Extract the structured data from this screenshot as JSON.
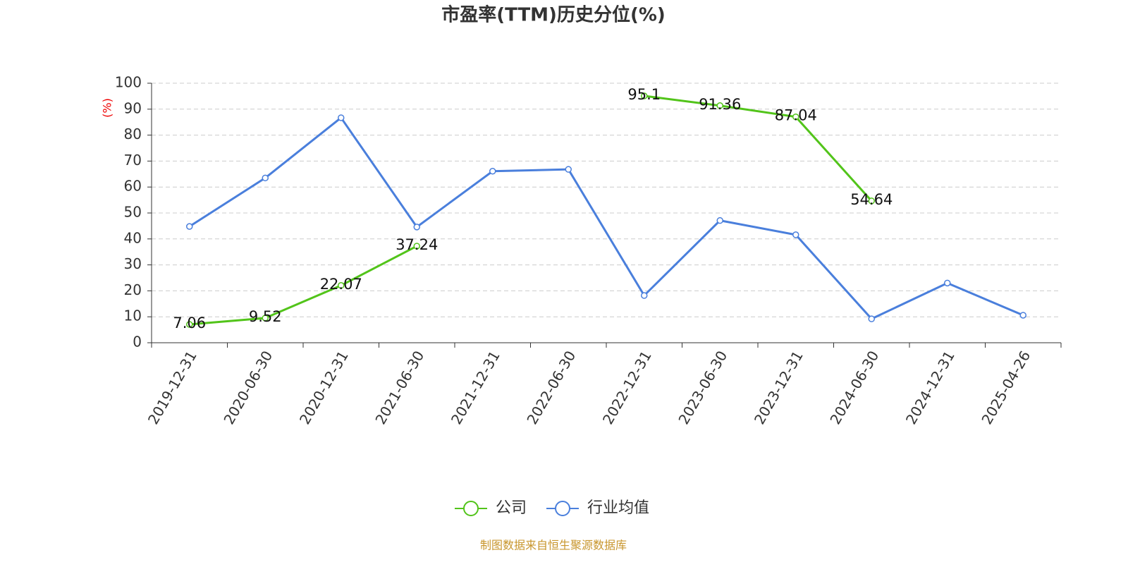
{
  "chart_data": {
    "type": "line",
    "title": "市盈率(TTM)历史分位(%)",
    "y_label": "(%)",
    "source": "制图数据来自恒生聚源数据库",
    "categories": [
      "2019-12-31",
      "2020-06-30",
      "2020-12-31",
      "2021-06-30",
      "2021-12-31",
      "2022-06-30",
      "2022-12-31",
      "2023-06-30",
      "2023-12-31",
      "2024-06-30",
      "2024-12-31",
      "2025-04-26"
    ],
    "series": [
      {
        "name": "公司",
        "color": "#52c41a",
        "show_labels": true,
        "values": [
          7.06,
          9.52,
          22.07,
          37.24,
          null,
          null,
          95.1,
          91.36,
          87.04,
          54.64,
          null,
          null
        ]
      },
      {
        "name": "行业均值",
        "color": "#4a7fdc",
        "show_labels": false,
        "values": [
          44.8,
          63.5,
          86.7,
          44.6,
          66.1,
          66.8,
          18.2,
          47.1,
          41.6,
          9.2,
          23.0,
          10.6
        ]
      }
    ],
    "ylim": [
      0,
      100
    ],
    "yticks": [
      0,
      10,
      20,
      30,
      40,
      50,
      60,
      70,
      80,
      90,
      100
    ],
    "grid": true,
    "legend": "bottom"
  }
}
